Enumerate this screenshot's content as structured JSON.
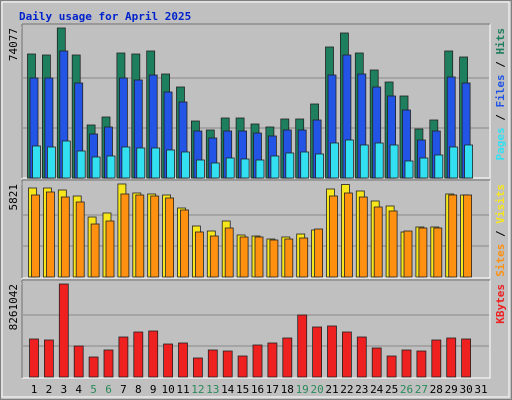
{
  "title": "Daily usage for April 2025",
  "legend_separator": " / ",
  "chart_data": [
    {
      "type": "bar",
      "ylim": [
        0,
        74077
      ],
      "yticks": [
        74077
      ],
      "series": [
        {
          "name": "Hits",
          "color": "#1e7f5e",
          "values": [
            61237,
            60744,
            74077,
            60744,
            26174,
            30125,
            61731,
            61237,
            62719,
            51360,
            44940,
            28149,
            23705,
            29631,
            29631,
            26668,
            25186,
            29137,
            29137,
            36545,
            64694,
            71608,
            61731,
            53336,
            47410,
            40496,
            24199,
            28643,
            62719,
            59756,
            null
          ]
        },
        {
          "name": "Files",
          "color": "#2255e6",
          "values": [
            49385,
            49385,
            62719,
            46916,
            21729,
            25186,
            49385,
            48397,
            50867,
            42471,
            37533,
            23211,
            19754,
            23211,
            23211,
            22223,
            20742,
            23705,
            23705,
            28643,
            50867,
            60744,
            51360,
            44940,
            40496,
            33582,
            18766,
            23211,
            49879,
            46916,
            null
          ]
        },
        {
          "name": "Pages",
          "color": "#33e0f2",
          "values": [
            15803,
            15309,
            18272,
            13334,
            10371,
            10865,
            15309,
            14816,
            14816,
            13828,
            12840,
            8889,
            7408,
            9877,
            9383,
            8889,
            10865,
            12346,
            12840,
            11852,
            17285,
            18766,
            16297,
            17285,
            16297,
            8395,
            9877,
            11359,
            15309,
            16297,
            null
          ]
        }
      ]
    },
    {
      "type": "bar",
      "ylim": [
        0,
        5821
      ],
      "yticks": [
        5821
      ],
      "series": [
        {
          "name": "Visits",
          "color": "#f8e61c",
          "values": [
            5571,
            5571,
            5445,
            5070,
            3755,
            4006,
            5821,
            5258,
            5195,
            5132,
            4319,
            3192,
            2879,
            3505,
            2629,
            2566,
            2378,
            2504,
            2691,
            2942,
            5508,
            5790,
            5383,
            4757,
            4444,
            2817,
            3130,
            3130,
            5195,
            5132,
            null
          ]
        },
        {
          "name": "Sites",
          "color": "#ff9010",
          "values": [
            5132,
            5320,
            5007,
            4694,
            3317,
            3505,
            5195,
            5132,
            5070,
            4945,
            4194,
            2817,
            2566,
            3067,
            2504,
            2504,
            2316,
            2378,
            2441,
            3004,
            5070,
            5258,
            5007,
            4381,
            4131,
            2879,
            3067,
            3067,
            5132,
            5132,
            null
          ]
        }
      ]
    },
    {
      "type": "bar",
      "ylim": [
        0,
        8261042
      ],
      "yticks": [
        8261042
      ],
      "categories": [
        "1",
        "2",
        "3",
        "4",
        "5",
        "6",
        "7",
        "8",
        "9",
        "10",
        "11",
        "12",
        "13",
        "14",
        "15",
        "16",
        "17",
        "18",
        "19",
        "20",
        "21",
        "22",
        "23",
        "24",
        "25",
        "26",
        "27",
        "28",
        "29",
        "30",
        "31"
      ],
      "category_colors": [
        "#000000",
        "#000000",
        "#000000",
        "#000000",
        "#2a8a5a",
        "#2a8a5a",
        "#000000",
        "#000000",
        "#000000",
        "#000000",
        "#000000",
        "#2a8a5a",
        "#2a8a5a",
        "#000000",
        "#000000",
        "#000000",
        "#000000",
        "#000000",
        "#2a8a5a",
        "#2a8a5a",
        "#000000",
        "#000000",
        "#000000",
        "#000000",
        "#000000",
        "#2a8a5a",
        "#2a8a5a",
        "#000000",
        "#000000",
        "#000000",
        "#000000"
      ],
      "series": [
        {
          "name": "KBytes",
          "color": "#ee2020",
          "values": [
            3375464,
            3286636,
            8261042,
            2753668,
            1776560,
            2398356,
            3553120,
            3997260,
            4086088,
            2931324,
            3020152,
            1687732,
            2398356,
            2309528,
            1865388,
            2842496,
            3020152,
            3464292,
            5507336,
            4441400,
            4530228,
            3997260,
            3553120,
            2576012,
            1865388,
            2398356,
            2309528,
            3286636,
            3464292,
            3375464,
            null
          ]
        }
      ]
    }
  ]
}
